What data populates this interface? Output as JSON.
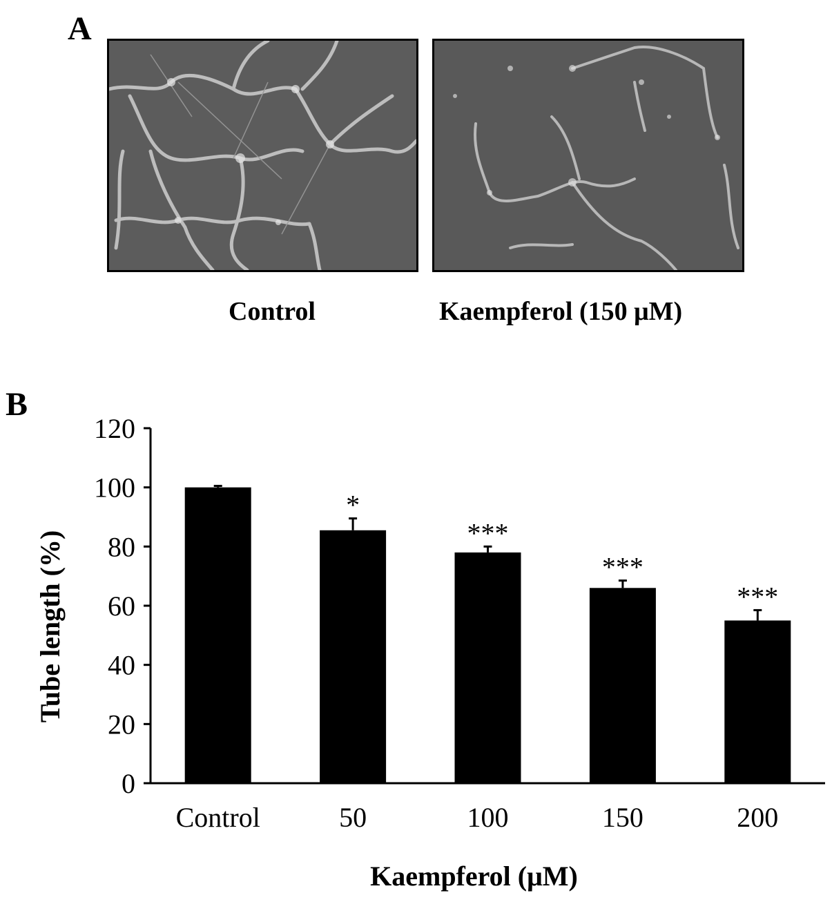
{
  "panel_a": {
    "letter": "A",
    "images": [
      {
        "caption": "Control"
      },
      {
        "caption": "Kaempferol (150 μM)"
      }
    ]
  },
  "panel_b": {
    "letter": "B"
  },
  "chart_data": {
    "type": "bar",
    "categories": [
      "Control",
      "50",
      "100",
      "150",
      "200"
    ],
    "values": [
      100,
      85.5,
      78,
      66,
      55
    ],
    "errors": [
      0.5,
      4,
      2,
      2.5,
      3.5
    ],
    "significance": [
      "",
      "*",
      "***",
      "***",
      "***"
    ],
    "xlabel": "Kaempferol (μM)",
    "ylabel": "Tube length (%)",
    "ylim": [
      0,
      120
    ],
    "yticks": [
      0,
      20,
      40,
      60,
      80,
      100,
      120
    ],
    "bar_color": "#000000",
    "grid": false
  }
}
